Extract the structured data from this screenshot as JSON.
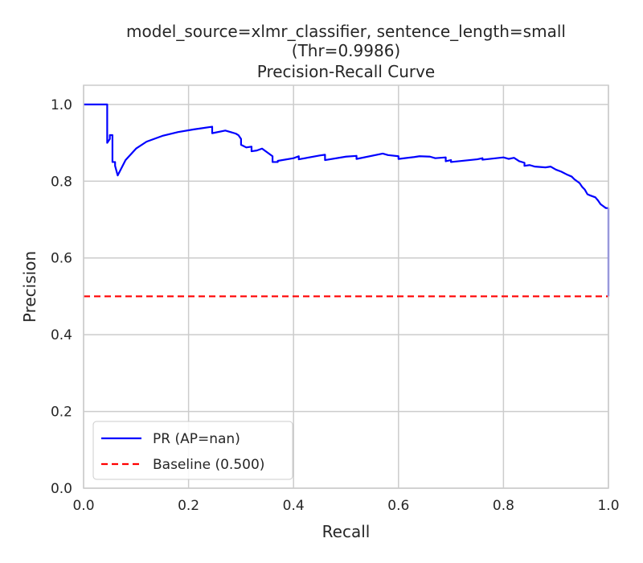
{
  "chart_data": {
    "type": "line",
    "title": "model_source=xlmr_classifier, sentence_length=small",
    "subtitle": "(Thr=0.9986)",
    "subtitle2": "Precision-Recall Curve",
    "xlabel": "Recall",
    "ylabel": "Precision",
    "xlim": [
      0.0,
      1.0
    ],
    "ylim": [
      0.0,
      1.05
    ],
    "xticks": [
      "0.0",
      "0.2",
      "0.4",
      "0.6",
      "0.8",
      "1.0"
    ],
    "yticks": [
      "0.0",
      "0.2",
      "0.4",
      "0.6",
      "0.8",
      "1.0"
    ],
    "grid": true,
    "legend_position": "lower-left",
    "series": [
      {
        "name": "PR (AP=nan)",
        "color": "#0000ff",
        "style": "solid",
        "x": [
          0.0,
          0.045,
          0.045,
          0.05,
          0.05,
          0.055,
          0.055,
          0.06,
          0.06,
          0.065,
          0.08,
          0.1,
          0.12,
          0.15,
          0.18,
          0.21,
          0.245,
          0.245,
          0.27,
          0.28,
          0.29,
          0.295,
          0.3,
          0.3,
          0.31,
          0.32,
          0.32,
          0.33,
          0.34,
          0.35,
          0.36,
          0.36,
          0.37,
          0.37,
          0.4,
          0.41,
          0.41,
          0.45,
          0.46,
          0.46,
          0.5,
          0.52,
          0.52,
          0.57,
          0.58,
          0.6,
          0.6,
          0.63,
          0.64,
          0.66,
          0.67,
          0.69,
          0.69,
          0.7,
          0.7,
          0.75,
          0.76,
          0.76,
          0.8,
          0.81,
          0.82,
          0.83,
          0.84,
          0.84,
          0.85,
          0.86,
          0.87,
          0.88,
          0.89,
          0.9,
          0.91,
          0.92,
          0.93,
          0.935,
          0.94,
          0.945,
          0.95,
          0.955,
          0.96,
          0.965,
          0.975,
          0.98,
          0.985,
          0.99,
          0.995,
          1.0,
          1.0
        ],
        "y": [
          1.0,
          1.0,
          0.9,
          0.91,
          0.92,
          0.92,
          0.85,
          0.85,
          0.84,
          0.815,
          0.855,
          0.885,
          0.903,
          0.918,
          0.928,
          0.935,
          0.942,
          0.925,
          0.932,
          0.928,
          0.924,
          0.92,
          0.91,
          0.895,
          0.888,
          0.89,
          0.878,
          0.88,
          0.885,
          0.875,
          0.865,
          0.85,
          0.85,
          0.853,
          0.86,
          0.865,
          0.857,
          0.867,
          0.869,
          0.855,
          0.864,
          0.866,
          0.858,
          0.872,
          0.868,
          0.865,
          0.858,
          0.863,
          0.865,
          0.864,
          0.86,
          0.862,
          0.852,
          0.855,
          0.85,
          0.857,
          0.86,
          0.856,
          0.862,
          0.858,
          0.861,
          0.852,
          0.848,
          0.84,
          0.842,
          0.838,
          0.837,
          0.836,
          0.838,
          0.83,
          0.825,
          0.818,
          0.812,
          0.805,
          0.8,
          0.795,
          0.785,
          0.778,
          0.766,
          0.763,
          0.758,
          0.75,
          0.74,
          0.735,
          0.73,
          0.73,
          0.5
        ]
      },
      {
        "name": "Baseline (0.500)",
        "color": "#ff0000",
        "style": "dashed",
        "x": [
          0.0,
          1.0
        ],
        "y": [
          0.5,
          0.5
        ]
      }
    ]
  }
}
